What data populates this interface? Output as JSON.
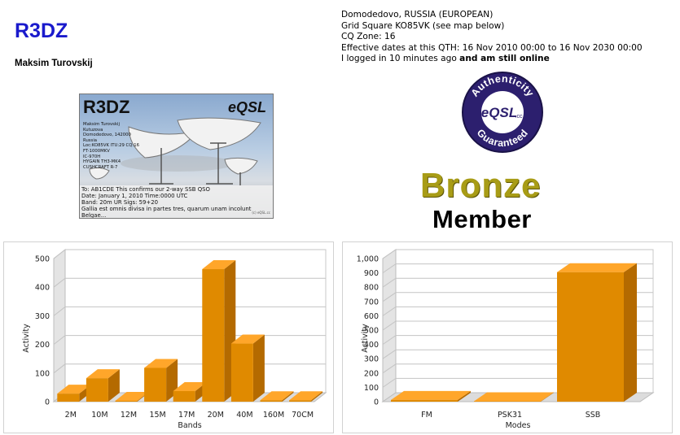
{
  "profile": {
    "callsign": "R3DZ",
    "name": "Maksim Turovskij"
  },
  "qth": {
    "location": "Domodedovo, RUSSIA (EUROPEAN)",
    "grid": "Grid Square KO85VK (see map below)",
    "cq_zone": "CQ Zone: 16",
    "effective_dates": "Effective dates at this QTH: 16 Nov 2010 00:00 to 16 Nov 2030 00:00",
    "login_prefix": "I logged in 10 minutes ago",
    "login_suffix": "and am still online"
  },
  "card": {
    "title": "R3DZ",
    "brand": "eQSL",
    "details": [
      "Maksim Turovskij",
      "Kutuzova",
      "Domodedovo, 142000",
      "Russia",
      "Loc:KO85VK ITU:29 CQ:16",
      "FT-1000MKV",
      "IC-970H",
      "HYGAIN TH3-MK4",
      "CUSHCRAFT R-7"
    ],
    "footer": [
      "To: AB1CDE  This confirms our 2-way SSB QSO",
      "Date: January 1, 2010  Time:0000 UTC",
      "Band: 20m UR Sigs: 59+20",
      "Gallia est omnis divisa in partes tres, quarum unam incolunt",
      "Belgae..."
    ],
    "copyright": "(c) eQSL.cc"
  },
  "badge": {
    "top_text": "Authenticity",
    "bottom_text": "Guaranteed",
    "center_text": "eQSL",
    "center_small": ".cc"
  },
  "membership": {
    "level": "Bronze",
    "label": "Member",
    "level_color": "#a89c16"
  },
  "colors": {
    "bar_front": "#e08a00",
    "bar_top": "#ffa62a",
    "bar_side": "#b46a00",
    "callsign": "#1a1acc"
  },
  "chart_data": [
    {
      "type": "bar",
      "categories": [
        "2M",
        "10M",
        "12M",
        "15M",
        "17M",
        "20M",
        "40M",
        "160M",
        "70CM"
      ],
      "values": [
        28,
        82,
        3,
        118,
        37,
        463,
        203,
        5,
        5
      ],
      "xlabel": "Bands",
      "ylabel": "Activity",
      "ylim": [
        0,
        500
      ],
      "yticks": [
        "0",
        "100",
        "200",
        "300",
        "400",
        "500"
      ],
      "grid": true
    },
    {
      "type": "bar",
      "categories": [
        "FM",
        "PSK31",
        "SSB"
      ],
      "values": [
        12,
        3,
        905
      ],
      "xlabel": "Modes",
      "ylabel": "Activity",
      "ylim": [
        0,
        1000
      ],
      "yticks": [
        "0",
        "100",
        "200",
        "300",
        "400",
        "500",
        "600",
        "700",
        "800",
        "900",
        "1,000"
      ],
      "grid": true
    }
  ]
}
